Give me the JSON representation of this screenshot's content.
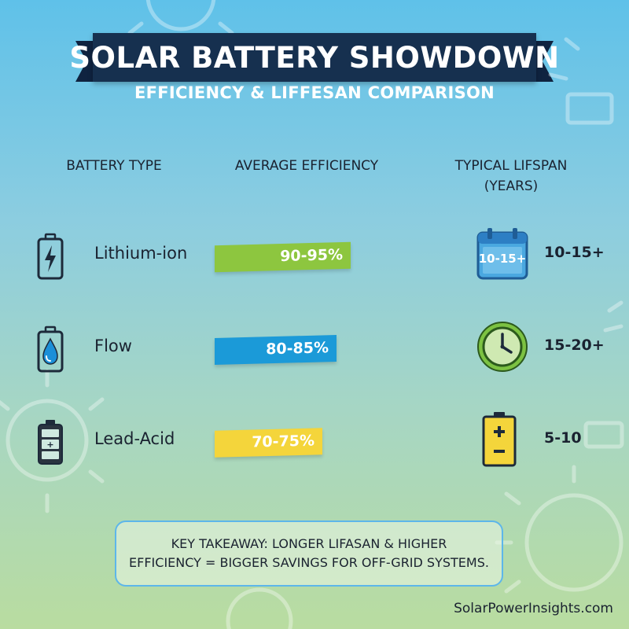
{
  "header": {
    "title": "SOLAR BATTERY SHOWDOWN",
    "subtitle": "EFFICIENCY & LIFFESAN COMPARISON"
  },
  "columns": {
    "type": "BATTERY TYPE",
    "efficiency": "AVERAGE EFFICIENCY",
    "lifespan_line1": "TYPICAL LIFSPAN",
    "lifespan_line2": "(YEARS)"
  },
  "rows": [
    {
      "name": "Lithium-ion",
      "type_icon": "lightning-battery-icon",
      "efficiency_label": "90-95%",
      "efficiency_fraction": 0.95,
      "bar_color": "#8dc63f",
      "lifespan_icon": "calendar-icon",
      "lifespan_icon_text": "10-15+",
      "lifespan": "10-15+"
    },
    {
      "name": "Flow",
      "type_icon": "water-drop-battery-icon",
      "efficiency_label": "80-85%",
      "efficiency_fraction": 0.85,
      "bar_color": "#1b9ad8",
      "lifespan_icon": "clock-icon",
      "lifespan": "15-20+"
    },
    {
      "name": "Lead-Acid",
      "type_icon": "lead-acid-battery-icon",
      "efficiency_label": "70-75%",
      "efficiency_fraction": 0.75,
      "bar_color": "#f4d53b",
      "lifespan_icon": "plus-minus-battery-icon",
      "lifespan": "5-10"
    }
  ],
  "takeaway": {
    "line1": "KEY TAKEAWAY: LONGER LIFASAN & HIGHER",
    "line2": "EFFICIENCY = BIGGER SAVINGS FOR OFF-GRID SYSTEMS."
  },
  "footer": {
    "site": "SolarPowerInsights.com"
  },
  "colors": {
    "banner": "#16304f",
    "accent_border": "#5db6ea"
  }
}
